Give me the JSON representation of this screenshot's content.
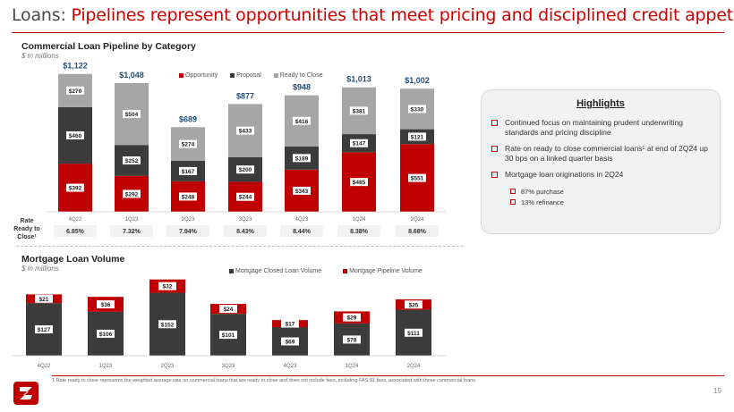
{
  "title": {
    "prefix": "Loans:",
    "main": "Pipelines represent opportunities that meet pricing and disciplined credit appetite"
  },
  "colors": {
    "opportunity": "#c00000",
    "proposal": "#3b3b3b",
    "ready": "#a6a6a6",
    "closed": "#3b3b3b",
    "pipeline": "#c00000",
    "total_label": "#1f4e79",
    "accent": "#cc0000"
  },
  "commercial": {
    "title": "Commercial Loan Pipeline by Category",
    "subtitle": "$ in millions",
    "rate_label_lines": [
      "Rate",
      "Ready to",
      "Close¹"
    ]
  },
  "mortgage": {
    "title": "Mortgage Loan Volume",
    "subtitle": "$ in millions"
  },
  "chart_data": [
    {
      "type": "bar",
      "stacked": true,
      "title": "Commercial Loan Pipeline by Category",
      "categories": [
        "4Q22",
        "1Q23",
        "2Q23",
        "3Q23",
        "4Q23",
        "1Q24",
        "2Q24"
      ],
      "series": [
        {
          "name": "Opportunity",
          "values": [
            392,
            292,
            248,
            244,
            343,
            485,
            551
          ],
          "labels": [
            "$392",
            "$292",
            "$248",
            "$244",
            "$343",
            "$485",
            "$551"
          ]
        },
        {
          "name": "Proposal",
          "values": [
            460,
            252,
            167,
            200,
            189,
            147,
            121
          ],
          "labels": [
            "$460",
            "$252",
            "$167",
            "$200",
            "$189",
            "$147",
            "$121"
          ]
        },
        {
          "name": "Ready to Close",
          "values": [
            270,
            504,
            274,
            433,
            416,
            381,
            330
          ],
          "labels": [
            "$270",
            "$504",
            "$274",
            "$433",
            "$416",
            "$381",
            "$330"
          ]
        }
      ],
      "totals": [
        1122,
        1048,
        689,
        877,
        948,
        1013,
        1002
      ],
      "total_labels": [
        "$1,122",
        "$1,048",
        "$689",
        "$877",
        "$948",
        "$1,013",
        "$1,002"
      ],
      "rate_ready_to_close": [
        "6.85%",
        "7.32%",
        "7.94%",
        "8.43%",
        "8.44%",
        "8.38%",
        "8.68%"
      ],
      "ylim": [
        0,
        1200
      ],
      "legend_position": "top-center"
    },
    {
      "type": "bar",
      "stacked": true,
      "title": "Mortgage Loan Volume",
      "categories": [
        "4Q22",
        "1Q23",
        "2Q23",
        "3Q23",
        "4Q23",
        "1Q24",
        "2Q24"
      ],
      "series": [
        {
          "name": "Mortgage Closed Loan Volume",
          "values": [
            127,
            106,
            152,
            101,
            69,
            78,
            111
          ],
          "labels": [
            "$127",
            "$106",
            "$152",
            "$101",
            "$69",
            "$78",
            "$111"
          ]
        },
        {
          "name": "Mortgage Pipeline Volume",
          "values": [
            21,
            36,
            32,
            24,
            17,
            29,
            25
          ],
          "labels": [
            "$21",
            "$36",
            "$32",
            "$24",
            "$17",
            "$29",
            "$25"
          ]
        }
      ],
      "ylim": [
        0,
        190
      ],
      "legend_position": "top-center"
    }
  ],
  "highlights": {
    "title": "Highlights",
    "items": [
      "Continued focus on maintaining prudent underwriting standards and pricing discipline",
      "Rate on ready to close commercial loans¹ at end of 2Q24 up 30 bps on a linked quarter basis",
      "Mortgage loan originations in 2Q24"
    ],
    "subitems": [
      "87% purchase",
      "13% refinance"
    ]
  },
  "footnote": "1 Rate ready to close represents the weighted average rate on commercial loans that are ready to close and does not include fees, including FAS 91 fees, associated with those commercial loans",
  "page_number": "19"
}
